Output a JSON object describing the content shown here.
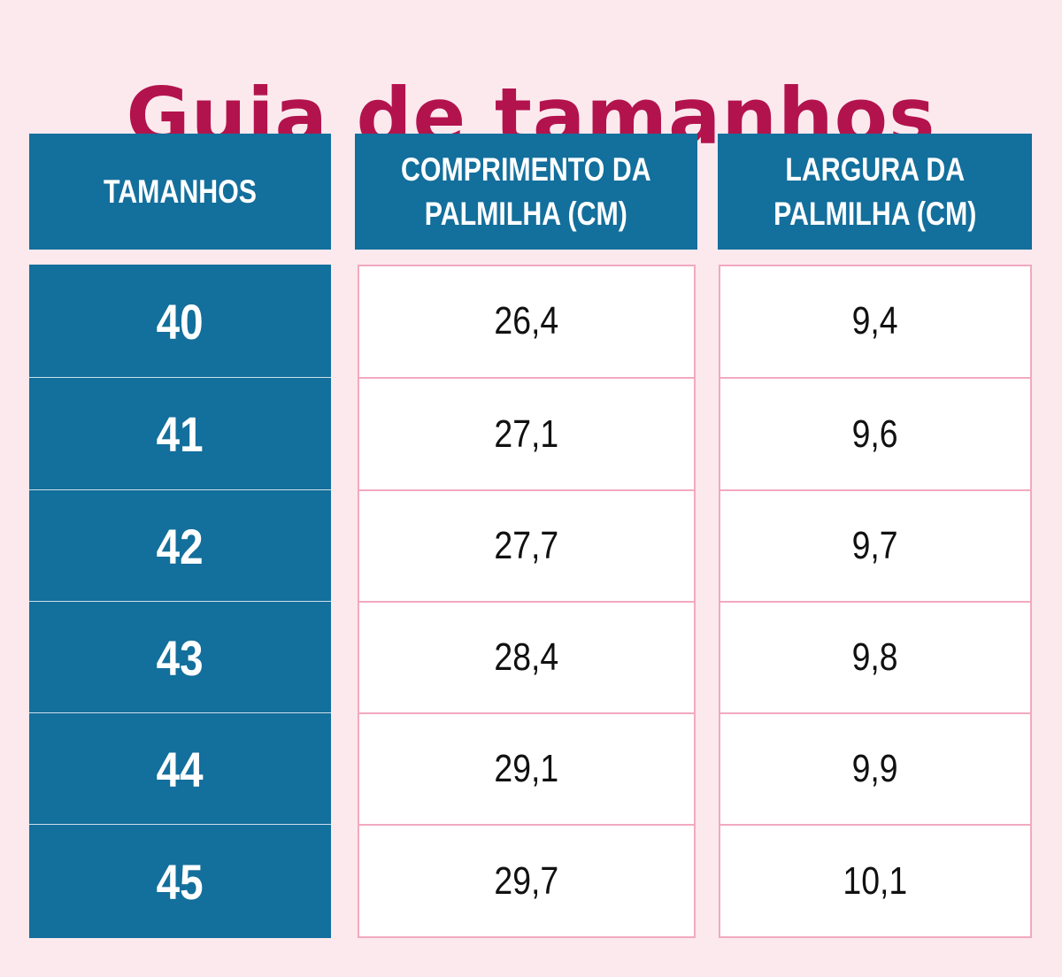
{
  "title": "Guia de tamanhos",
  "headers": {
    "size": "TAMANHOS",
    "length": "COMPRIMENTO DA\nPALMILHA (CM)",
    "width": "LARGURA DA\nPALMILHA (CM)"
  },
  "rows": [
    {
      "size": "40",
      "length": "26,4",
      "width": "9,4"
    },
    {
      "size": "41",
      "length": "27,1",
      "width": "9,6"
    },
    {
      "size": "42",
      "length": "27,7",
      "width": "9,7"
    },
    {
      "size": "43",
      "length": "28,4",
      "width": "9,8"
    },
    {
      "size": "44",
      "length": "29,1",
      "width": "9,9"
    },
    {
      "size": "45",
      "length": "29,7",
      "width": "10,1"
    }
  ],
  "colors": {
    "background": "#fce9ee",
    "title": "#b3134d",
    "header": "#136f9c",
    "cell_border": "#f2a9c0"
  }
}
